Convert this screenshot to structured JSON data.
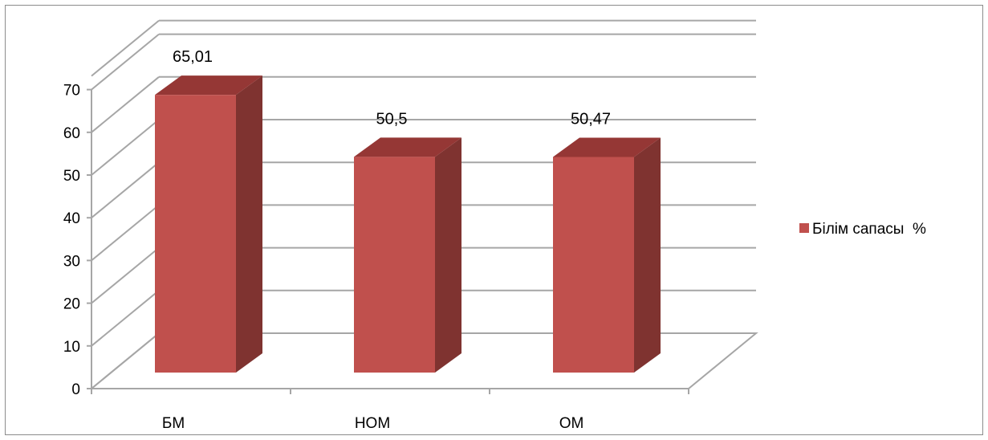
{
  "chart_data": {
    "type": "bar",
    "three_d": true,
    "categories": [
      "БМ",
      "НОМ",
      "ОМ"
    ],
    "series": [
      {
        "name": "Білім сапасы  %",
        "values": [
          65.01,
          50.5,
          50.47
        ],
        "labels": [
          "65,01",
          "50,5",
          "50,47"
        ],
        "color": "#C0504D",
        "side_color": "#7F3330",
        "top_color": "#953735"
      }
    ],
    "yticks": [
      "0",
      "10",
      "20",
      "30",
      "40",
      "50",
      "60",
      "70"
    ],
    "ylim": [
      0,
      70
    ],
    "grid": true,
    "legend_position": "right",
    "title": "",
    "xlabel": "",
    "ylabel": ""
  }
}
